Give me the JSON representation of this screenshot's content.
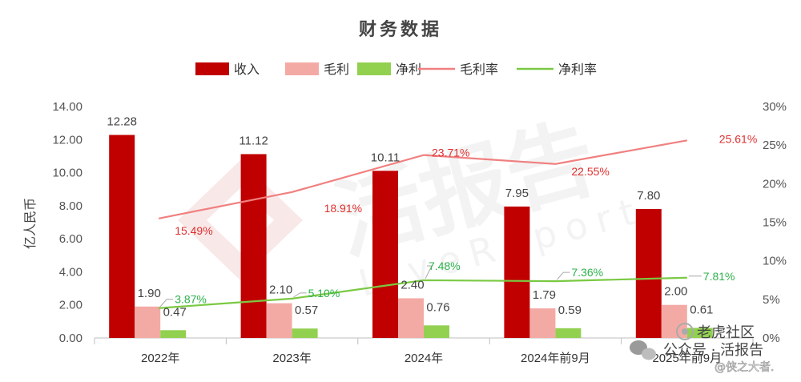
{
  "chart_data": {
    "type": "bar",
    "title": "财务数据",
    "categories": [
      "2022年",
      "2023年",
      "2024年",
      "2024年前9月",
      "2025年前9月"
    ],
    "ylabel": "亿人民币",
    "ylim": [
      0,
      14
    ],
    "yticks": [
      "0.00",
      "2.00",
      "4.00",
      "6.00",
      "8.00",
      "10.00",
      "12.00",
      "14.00"
    ],
    "y2lim": [
      0,
      30
    ],
    "y2ticks": [
      "0%",
      "5%",
      "10%",
      "15%",
      "20%",
      "25%",
      "30%"
    ],
    "series": [
      {
        "name": "收入",
        "kind": "bar",
        "color": "#c00000",
        "values": [
          12.28,
          11.12,
          10.11,
          7.95,
          7.8
        ],
        "labels": [
          "12.28",
          "11.12",
          "10.11",
          "7.95",
          "7.80"
        ]
      },
      {
        "name": "毛利",
        "kind": "bar",
        "color": "#f4aaa4",
        "values": [
          1.9,
          2.1,
          2.4,
          1.79,
          2.0
        ],
        "labels": [
          "1.90",
          "2.10",
          "2.40",
          "1.79",
          "2.00"
        ]
      },
      {
        "name": "净利",
        "kind": "bar",
        "color": "#92d050",
        "values": [
          0.47,
          0.57,
          0.76,
          0.59,
          0.61
        ],
        "labels": [
          "0.47",
          "0.57",
          "0.76",
          "0.59",
          "0.61"
        ]
      },
      {
        "name": "毛利率",
        "kind": "line",
        "axis": "right",
        "color": "#f08080",
        "label_color": "#e03030",
        "values": [
          15.49,
          18.91,
          23.71,
          22.55,
          25.61
        ],
        "labels": [
          "15.49%",
          "18.91%",
          "23.71%",
          "22.55%",
          "25.61%"
        ]
      },
      {
        "name": "净利率",
        "kind": "line",
        "axis": "right",
        "color": "#7ac943",
        "label_color": "#2cb24a",
        "values": [
          3.87,
          5.1,
          7.48,
          7.36,
          7.81
        ],
        "labels": [
          "3.87%",
          "5.10%",
          "7.48%",
          "7.36%",
          "7.81%"
        ]
      }
    ],
    "legend_position": "top",
    "grid": false
  },
  "watermark": {
    "main": "活报告",
    "sub": "LiveReport"
  },
  "footer": {
    "account": "公众号 · 活报告",
    "overlay": "老虎社区",
    "handle": "@侠之大者."
  }
}
